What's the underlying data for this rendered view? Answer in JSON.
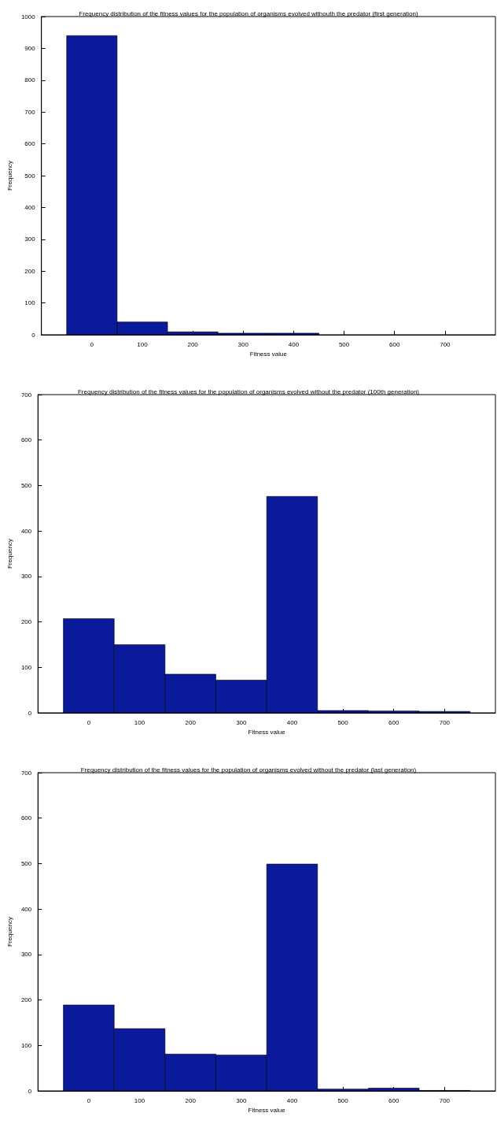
{
  "chart_data": [
    {
      "type": "histogram",
      "title": "Frequency distribution of the fitness values for the population of organisms evolved withouth the predator (first generation)",
      "xlabel": "Fitness value",
      "ylabel": "Frequency",
      "bins": [
        -50,
        50,
        150,
        250,
        350,
        450,
        550,
        650,
        750
      ],
      "values": [
        940,
        40,
        9,
        5,
        5,
        0,
        0,
        0
      ],
      "color": "#0a1a9a",
      "xlim": [
        -100,
        800
      ],
      "xticks": [
        0,
        100,
        200,
        300,
        400,
        500,
        600,
        700
      ],
      "ylim": [
        0,
        1000
      ],
      "yticks": [
        0,
        100,
        200,
        300,
        400,
        500,
        600,
        700,
        800,
        900,
        1000
      ],
      "grid": false
    },
    {
      "type": "histogram",
      "title": "Frequency distribution of the fitness values for the population of organisms evolved without the predator (100th generation)",
      "xlabel": "Fitness value",
      "ylabel": "Frequency",
      "bins": [
        -50,
        50,
        150,
        250,
        350,
        450,
        550,
        650,
        750
      ],
      "values": [
        207,
        150,
        85,
        72,
        476,
        5,
        4,
        3
      ],
      "color": "#0a1a9a",
      "xlim": [
        -100,
        800
      ],
      "xticks": [
        0,
        100,
        200,
        300,
        400,
        500,
        600,
        700
      ],
      "ylim": [
        0,
        700
      ],
      "yticks": [
        0,
        100,
        200,
        300,
        400,
        500,
        600,
        700
      ],
      "grid": false
    },
    {
      "type": "histogram",
      "title": "Frequency distribution of the fitness values for the population of organisms evolved without the predator (last generation)",
      "xlabel": "Fitness value",
      "ylabel": "Frequency",
      "bins": [
        -50,
        50,
        150,
        250,
        350,
        450,
        550,
        650,
        750
      ],
      "values": [
        189,
        137,
        81,
        79,
        499,
        4,
        6,
        1
      ],
      "color": "#0a1a9a",
      "xlim": [
        -100,
        800
      ],
      "xticks": [
        0,
        100,
        200,
        300,
        400,
        500,
        600,
        700
      ],
      "ylim": [
        0,
        700
      ],
      "yticks": [
        0,
        100,
        200,
        300,
        400,
        500,
        600,
        700
      ],
      "grid": false
    }
  ]
}
